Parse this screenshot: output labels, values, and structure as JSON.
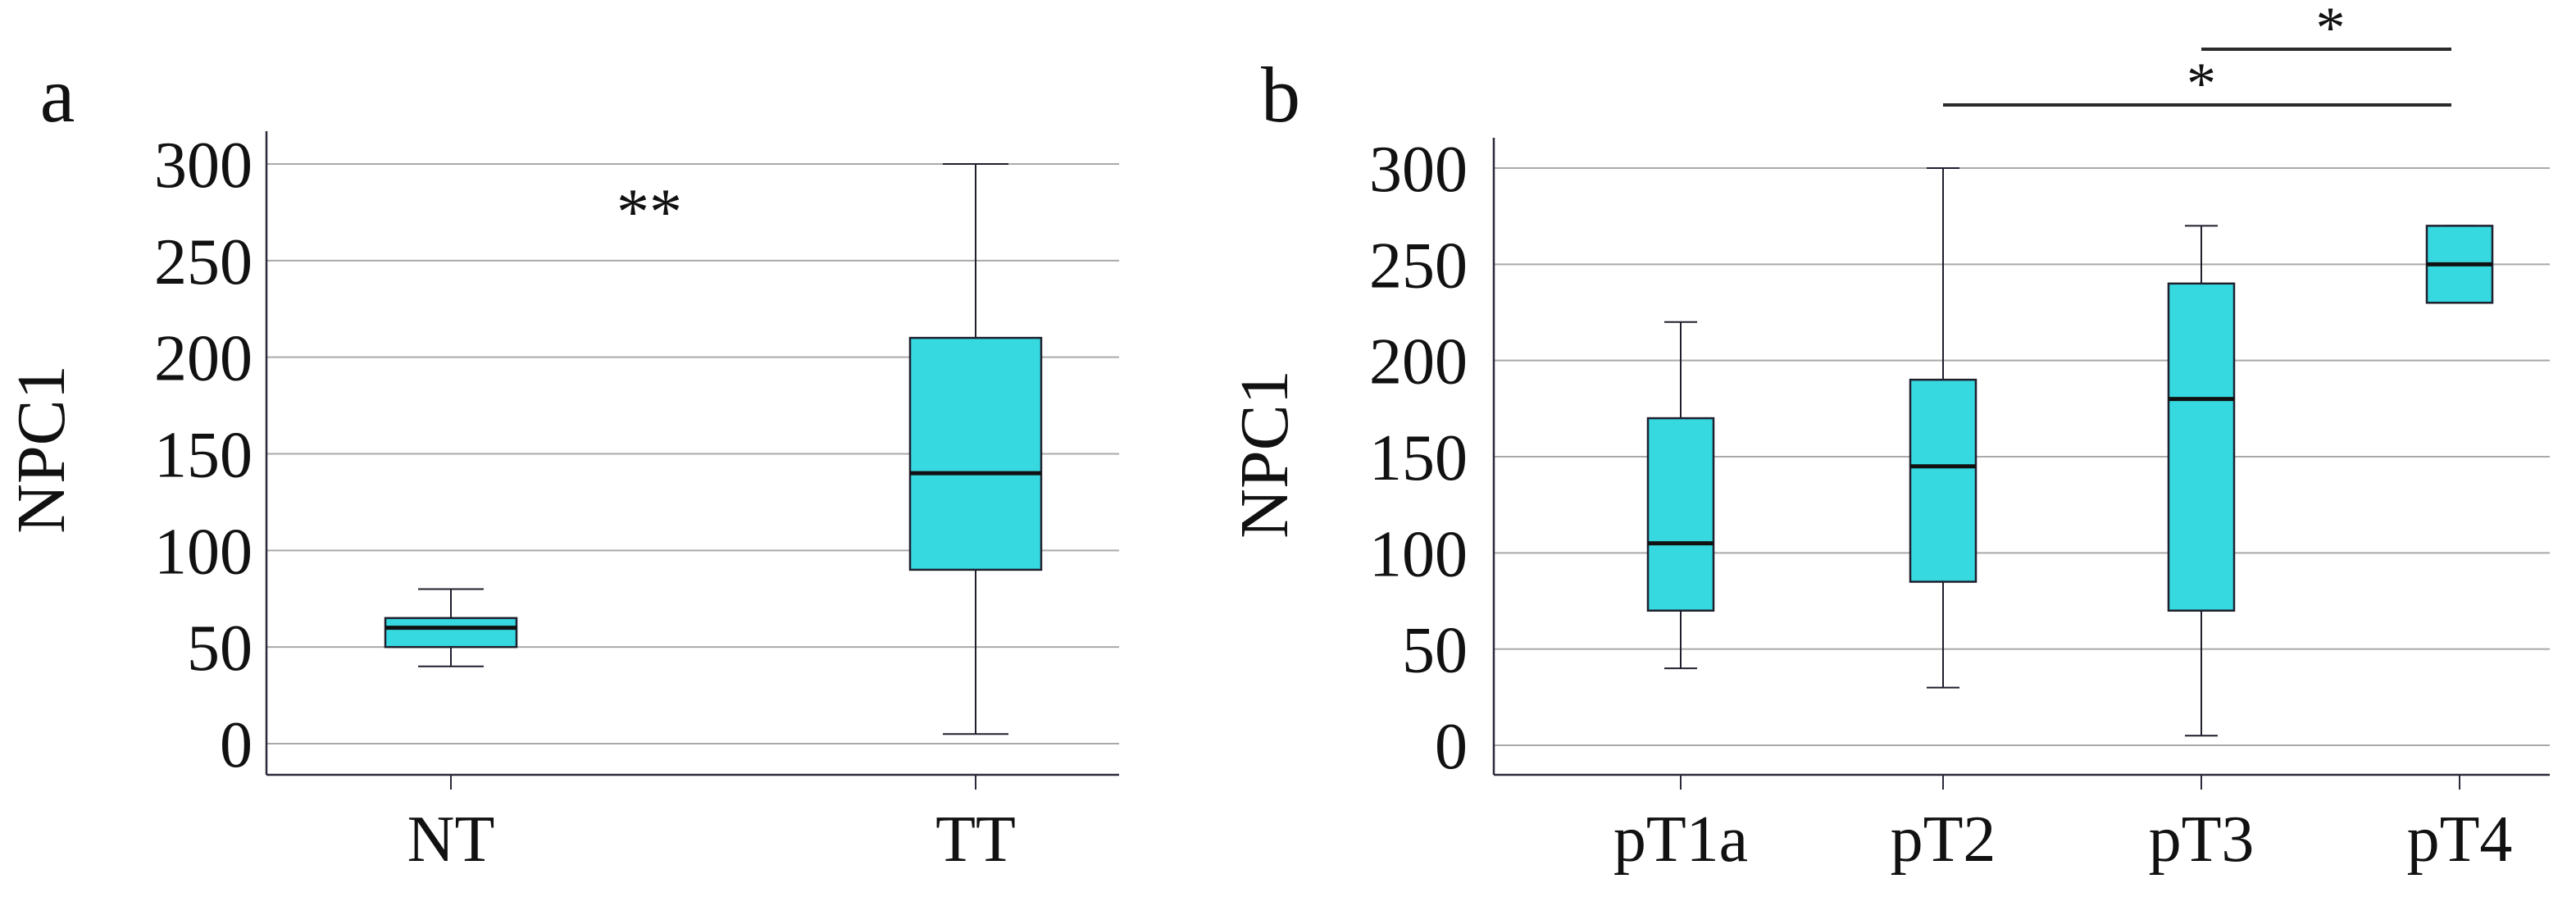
{
  "colors": {
    "box_fill": "#36D9E0",
    "box_stroke": "#1f1f2e",
    "grid": "#a9a9a9",
    "axis": "#2a2a3a",
    "text": "#111111"
  },
  "chart_data": [
    {
      "type": "box",
      "panel_label": "a",
      "ylabel": "NPC1",
      "ylim": [
        -15,
        315
      ],
      "yticks": [
        "0",
        "50",
        "100",
        "150",
        "200",
        "250",
        "300"
      ],
      "categories": [
        "NT",
        "TT"
      ],
      "boxes": [
        {
          "category": "NT",
          "min": 40,
          "q1": 50,
          "median": 60,
          "q3": 65,
          "max": 80
        },
        {
          "category": "TT",
          "min": 5,
          "q1": 90,
          "median": 140,
          "q3": 210,
          "max": 300
        }
      ],
      "annotations": [
        {
          "text": "**",
          "between": [
            "NT",
            "TT"
          ],
          "y": 280
        }
      ]
    },
    {
      "type": "box",
      "panel_label": "b",
      "ylabel": "NPC1",
      "ylim": [
        -15,
        315
      ],
      "yticks": [
        "0",
        "50",
        "100",
        "150",
        "200",
        "250",
        "300"
      ],
      "categories": [
        "pT1a",
        "pT2",
        "pT3",
        "pT4"
      ],
      "boxes": [
        {
          "category": "pT1a",
          "min": 40,
          "q1": 70,
          "median": 105,
          "q3": 170,
          "max": 220
        },
        {
          "category": "pT2",
          "min": 30,
          "q1": 85,
          "median": 145,
          "q3": 190,
          "max": 300
        },
        {
          "category": "pT3",
          "min": 5,
          "q1": 70,
          "median": 180,
          "q3": 240,
          "max": 270
        },
        {
          "category": "pT4",
          "min": 230,
          "q1": 230,
          "median": 250,
          "q3": 270,
          "max": 270
        }
      ],
      "significance": [
        {
          "text": "*",
          "from": "pT3",
          "to": "pT4"
        },
        {
          "text": "*",
          "from": "pT2",
          "to": "pT4"
        }
      ]
    }
  ]
}
